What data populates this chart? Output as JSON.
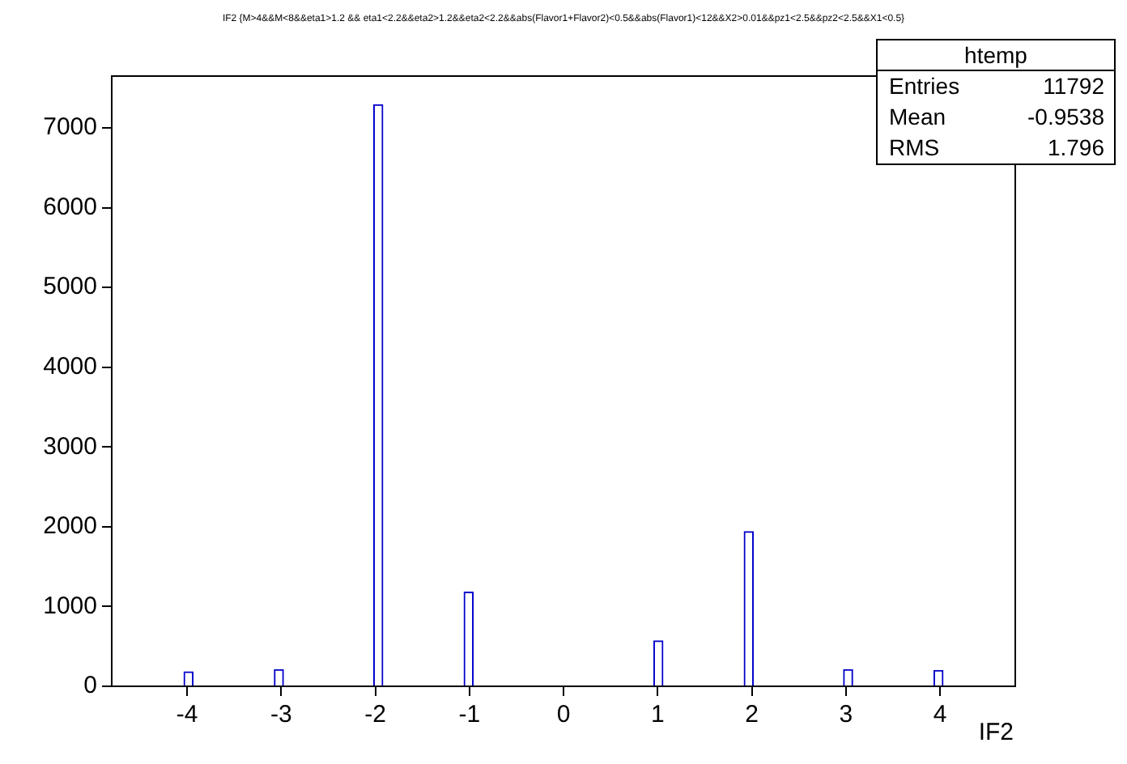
{
  "chart_data": {
    "type": "histogram",
    "title": "IF2 {M>4&&M<8&&eta1>1.2 && eta1<2.2&&eta2>1.2&&eta2<2.2&&abs(Flavor1+Flavor2)<0.5&&abs(Flavor1)<12&&X2>0.01&&pz1<2.5&&pz2<2.5&&X1<0.5}",
    "xlabel": "IF2",
    "bins": [
      -4.8,
      -4.704,
      -4.608,
      -4.512,
      -4.416,
      -4.32,
      -4.224,
      -4.128,
      -4.032,
      -3.936,
      -3.84,
      -3.744,
      -3.648,
      -3.552,
      -3.456,
      -3.36,
      -3.264,
      -3.168,
      -3.072,
      -2.976,
      -2.88,
      -2.784,
      -2.688,
      -2.592,
      -2.496,
      -2.4,
      -2.304,
      -2.208,
      -2.112,
      -2.016,
      -1.92,
      -1.824,
      -1.728,
      -1.632,
      -1.536,
      -1.44,
      -1.344,
      -1.248,
      -1.152,
      -1.056,
      -0.96,
      -0.864,
      -0.768,
      -0.672,
      -0.576,
      -0.48,
      -0.384,
      -0.288,
      -0.192,
      -0.096,
      0,
      0.096,
      0.192,
      0.288,
      0.384,
      0.48,
      0.576,
      0.672,
      0.768,
      0.864,
      0.96,
      1.056,
      1.152,
      1.248,
      1.344,
      1.44,
      1.536,
      1.632,
      1.728,
      1.824,
      1.92,
      2.016,
      2.112,
      2.208,
      2.304,
      2.4,
      2.496,
      2.592,
      2.688,
      2.784,
      2.88,
      2.976,
      3.072,
      3.168,
      3.264,
      3.36,
      3.456,
      3.552,
      3.648,
      3.744,
      3.84,
      3.936,
      4.032,
      4.128,
      4.224,
      4.32,
      4.416,
      4.512,
      4.608,
      4.704,
      4.8
    ],
    "values": [
      0,
      0,
      0,
      0,
      0,
      0,
      0,
      0,
      180,
      0,
      0,
      0,
      0,
      0,
      0,
      0,
      0,
      0,
      210,
      0,
      0,
      0,
      0,
      0,
      0,
      0,
      0,
      0,
      0,
      7290,
      0,
      0,
      0,
      0,
      0,
      0,
      0,
      0,
      0,
      1180,
      0,
      0,
      0,
      0,
      0,
      0,
      0,
      0,
      0,
      0,
      0,
      0,
      0,
      0,
      0,
      0,
      0,
      0,
      0,
      0,
      570,
      0,
      0,
      0,
      0,
      0,
      0,
      0,
      0,
      0,
      1940,
      0,
      0,
      0,
      0,
      0,
      0,
      0,
      0,
      0,
      0,
      210,
      0,
      0,
      0,
      0,
      0,
      0,
      0,
      0,
      0,
      200,
      0,
      0,
      0,
      0,
      0,
      0,
      0,
      0
    ],
    "color": "#0000cc",
    "xlim": [
      -4.8,
      4.8
    ],
    "xticks": [
      -4,
      -3,
      -2,
      -1,
      0,
      1,
      2,
      3,
      4
    ],
    "ylim": [
      0,
      7650
    ],
    "yticks": [
      0,
      1000,
      2000,
      3000,
      4000,
      5000,
      6000,
      7000
    ],
    "annotations": [
      "htemp",
      "Entries",
      "11792",
      "Mean",
      "-0.9538",
      "RMS",
      "1.796"
    ]
  }
}
